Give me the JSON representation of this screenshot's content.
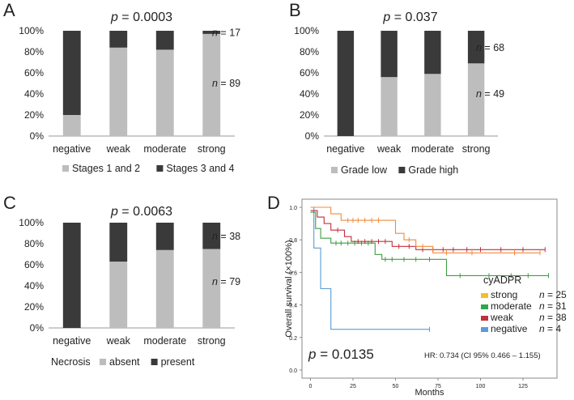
{
  "colors": {
    "light_bar": "#bdbdbd",
    "dark_bar": "#3a3a3a",
    "axis": "#555555",
    "text": "#222222",
    "km_strong": "#f28a3c",
    "km_moderate": "#3f9e3f",
    "km_weak": "#c0303c",
    "km_negative": "#5b9bd5",
    "legend_strong": "#f2c02a",
    "legend_moderate": "#2ea84a",
    "legend_weak": "#c0303c",
    "legend_negative": "#5b9bd5"
  },
  "chart_data": [
    {
      "panel": "A",
      "type": "bar",
      "stacked": true,
      "title_p": "p",
      "title_rest": " = 0.0003",
      "categories": [
        "negative",
        "weak",
        "moderate",
        "strong"
      ],
      "series": [
        {
          "name": "Stages 1 and 2",
          "values": [
            20,
            84,
            82,
            97
          ]
        },
        {
          "name": "Stages 3 and 4",
          "values": [
            80,
            16,
            18,
            3
          ]
        }
      ],
      "yticks": [
        "0%",
        "20%",
        "40%",
        "60%",
        "80%",
        "100%"
      ],
      "ylim": [
        0,
        100
      ],
      "legend_title": "",
      "n_labels": [
        {
          "n": "n",
          "rest": " = 17",
          "value": 98
        },
        {
          "n": "n",
          "rest": " = 89",
          "value": 50
        }
      ]
    },
    {
      "panel": "B",
      "type": "bar",
      "stacked": true,
      "title_p": "p",
      "title_rest": " = 0.037",
      "categories": [
        "negative",
        "weak",
        "moderate",
        "strong"
      ],
      "series": [
        {
          "name": "Grade low",
          "values": [
            0,
            56,
            59,
            69
          ]
        },
        {
          "name": "Grade high",
          "values": [
            100,
            44,
            41,
            31
          ]
        }
      ],
      "yticks": [
        "0%",
        "20%",
        "40%",
        "60%",
        "80%",
        "100%"
      ],
      "ylim": [
        0,
        100
      ],
      "legend_title": "",
      "n_labels": [
        {
          "n": "n",
          "rest": " = 68",
          "value": 84
        },
        {
          "n": "n",
          "rest": " = 49",
          "value": 40
        }
      ]
    },
    {
      "panel": "C",
      "type": "bar",
      "stacked": true,
      "title_p": "p",
      "title_rest": " = 0.0063",
      "categories": [
        "negative",
        "weak",
        "moderate",
        "strong"
      ],
      "series": [
        {
          "name": "absent",
          "values": [
            0,
            63,
            74,
            75
          ]
        },
        {
          "name": "present",
          "values": [
            100,
            37,
            26,
            25
          ]
        }
      ],
      "yticks": [
        "0%",
        "20%",
        "40%",
        "60%",
        "80%",
        "100%"
      ],
      "ylim": [
        0,
        100
      ],
      "legend_title": "Necrosis",
      "n_labels": [
        {
          "n": "n",
          "rest": " = 38",
          "value": 87
        },
        {
          "n": "n",
          "rest": " = 79",
          "value": 44
        }
      ]
    },
    {
      "panel": "D",
      "type": "line",
      "subtype": "kaplan-meier",
      "xlabel": "Months",
      "ylabel": "Overall survival (×100%)",
      "xlim": [
        -5,
        145
      ],
      "ylim": [
        -0.05,
        1.05
      ],
      "xticks": [
        "0",
        "25",
        "50",
        "75",
        "100",
        "125"
      ],
      "yticks": [
        "0.0",
        "0.2",
        "0.4",
        "0.6",
        "0.8",
        "1.0"
      ],
      "legend_title": "cyADPR",
      "p_label": "p",
      "p_rest": " = 0.0135",
      "hr_text": "HR: 0.734 (CI 95% 0.466 – 1.155)",
      "series": [
        {
          "name": "strong",
          "n": "n",
          "n_rest": " = 25",
          "steps": [
            [
              0,
              1.0
            ],
            [
              12,
              1.0
            ],
            [
              12,
              0.96
            ],
            [
              18,
              0.96
            ],
            [
              18,
              0.92
            ],
            [
              50,
              0.92
            ],
            [
              50,
              0.84
            ],
            [
              55,
              0.84
            ],
            [
              55,
              0.8
            ],
            [
              62,
              0.8
            ],
            [
              62,
              0.76
            ],
            [
              72,
              0.76
            ],
            [
              72,
              0.72
            ],
            [
              135,
              0.72
            ]
          ],
          "censors": [
            [
              22,
              0.92
            ],
            [
              25,
              0.92
            ],
            [
              28,
              0.92
            ],
            [
              32,
              0.92
            ],
            [
              36,
              0.92
            ],
            [
              40,
              0.92
            ],
            [
              58,
              0.8
            ],
            [
              66,
              0.76
            ],
            [
              80,
              0.72
            ],
            [
              95,
              0.72
            ],
            [
              120,
              0.72
            ],
            [
              135,
              0.72
            ]
          ]
        },
        {
          "name": "moderate",
          "n": "n",
          "n_rest": " = 31",
          "steps": [
            [
              0,
              0.97
            ],
            [
              3,
              0.97
            ],
            [
              3,
              0.87
            ],
            [
              6,
              0.87
            ],
            [
              6,
              0.81
            ],
            [
              12,
              0.81
            ],
            [
              12,
              0.78
            ],
            [
              38,
              0.78
            ],
            [
              38,
              0.71
            ],
            [
              42,
              0.71
            ],
            [
              42,
              0.68
            ],
            [
              80,
              0.68
            ],
            [
              80,
              0.58
            ],
            [
              140,
              0.58
            ]
          ],
          "censors": [
            [
              15,
              0.78
            ],
            [
              18,
              0.78
            ],
            [
              22,
              0.78
            ],
            [
              26,
              0.78
            ],
            [
              30,
              0.78
            ],
            [
              34,
              0.78
            ],
            [
              44,
              0.68
            ],
            [
              48,
              0.68
            ],
            [
              55,
              0.68
            ],
            [
              62,
              0.68
            ],
            [
              70,
              0.68
            ],
            [
              88,
              0.58
            ],
            [
              105,
              0.58
            ],
            [
              118,
              0.58
            ],
            [
              128,
              0.58
            ],
            [
              140,
              0.58
            ]
          ]
        },
        {
          "name": "weak",
          "n": "n",
          "n_rest": " = 38",
          "steps": [
            [
              0,
              0.98
            ],
            [
              4,
              0.98
            ],
            [
              4,
              0.94
            ],
            [
              8,
              0.94
            ],
            [
              8,
              0.9
            ],
            [
              12,
              0.9
            ],
            [
              12,
              0.86
            ],
            [
              20,
              0.86
            ],
            [
              20,
              0.82
            ],
            [
              24,
              0.82
            ],
            [
              24,
              0.79
            ],
            [
              48,
              0.79
            ],
            [
              48,
              0.76
            ],
            [
              62,
              0.76
            ],
            [
              62,
              0.74
            ],
            [
              138,
              0.74
            ]
          ],
          "censors": [
            [
              16,
              0.86
            ],
            [
              28,
              0.79
            ],
            [
              32,
              0.79
            ],
            [
              36,
              0.79
            ],
            [
              40,
              0.79
            ],
            [
              44,
              0.79
            ],
            [
              52,
              0.76
            ],
            [
              58,
              0.76
            ],
            [
              66,
              0.74
            ],
            [
              72,
              0.74
            ],
            [
              78,
              0.74
            ],
            [
              84,
              0.74
            ],
            [
              92,
              0.74
            ],
            [
              100,
              0.74
            ],
            [
              112,
              0.74
            ],
            [
              125,
              0.74
            ],
            [
              138,
              0.74
            ]
          ]
        },
        {
          "name": "negative",
          "n": "n",
          "n_rest": " = 4",
          "steps": [
            [
              0,
              1.0
            ],
            [
              2,
              1.0
            ],
            [
              2,
              0.75
            ],
            [
              6,
              0.75
            ],
            [
              6,
              0.5
            ],
            [
              12,
              0.5
            ],
            [
              12,
              0.25
            ],
            [
              70,
              0.25
            ]
          ],
          "censors": [
            [
              70,
              0.25
            ]
          ]
        }
      ]
    }
  ]
}
